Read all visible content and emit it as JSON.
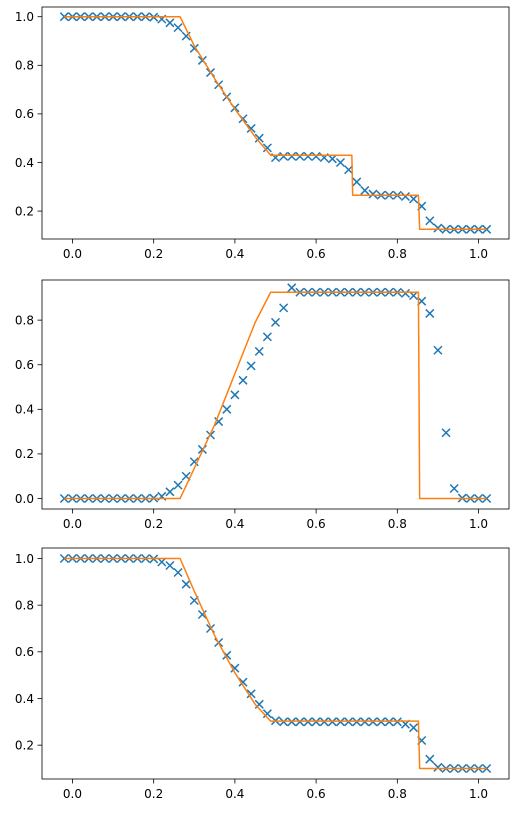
{
  "chart_data": [
    {
      "type": "scatter+line",
      "title": "",
      "xlabel": "",
      "ylabel": "",
      "xlim": [
        -0.075,
        1.075
      ],
      "ylim": [
        0.085,
        1.04
      ],
      "xticks": [
        0.0,
        0.2,
        0.4,
        0.6,
        0.8,
        1.0
      ],
      "xtick_labels": [
        "0.0",
        "0.2",
        "0.4",
        "0.6",
        "0.8",
        "1.0"
      ],
      "yticks": [
        0.2,
        0.4,
        0.6,
        0.8,
        1.0
      ],
      "ytick_labels": [
        "0.2",
        "0.4",
        "0.6",
        "0.8",
        "1.0"
      ],
      "grid": false,
      "series": [
        {
          "kind": "markers",
          "marker": "x",
          "color": "#1f77b4",
          "x": [
            -0.02,
            0.0,
            0.02,
            0.04,
            0.06,
            0.08,
            0.1,
            0.12,
            0.14,
            0.16,
            0.18,
            0.2,
            0.22,
            0.24,
            0.26,
            0.28,
            0.3,
            0.32,
            0.34,
            0.36,
            0.38,
            0.4,
            0.42,
            0.44,
            0.46,
            0.48,
            0.5,
            0.52,
            0.54,
            0.56,
            0.58,
            0.6,
            0.62,
            0.64,
            0.66,
            0.68,
            0.7,
            0.72,
            0.74,
            0.76,
            0.78,
            0.8,
            0.82,
            0.84,
            0.86,
            0.88,
            0.9,
            0.92,
            0.94,
            0.96,
            0.98,
            1.0,
            1.02
          ],
          "y": [
            1.0,
            1.0,
            1.0,
            1.0,
            1.0,
            1.0,
            1.0,
            1.0,
            1.0,
            1.0,
            1.0,
            0.998,
            0.99,
            0.975,
            0.955,
            0.92,
            0.87,
            0.82,
            0.77,
            0.72,
            0.67,
            0.625,
            0.58,
            0.54,
            0.5,
            0.46,
            0.42,
            0.425,
            0.425,
            0.425,
            0.425,
            0.425,
            0.42,
            0.415,
            0.4,
            0.37,
            0.32,
            0.285,
            0.27,
            0.265,
            0.265,
            0.265,
            0.26,
            0.25,
            0.22,
            0.16,
            0.13,
            0.125,
            0.125,
            0.125,
            0.125,
            0.125,
            0.125
          ]
        },
        {
          "kind": "line",
          "color": "#ff7f0e",
          "x": [
            -0.02,
            0.265,
            0.3,
            0.35,
            0.4,
            0.45,
            0.488,
            0.688,
            0.69,
            0.852,
            0.855,
            1.02
          ],
          "y": [
            1.0,
            1.0,
            0.88,
            0.745,
            0.62,
            0.505,
            0.43,
            0.43,
            0.265,
            0.265,
            0.125,
            0.125
          ]
        }
      ]
    },
    {
      "type": "scatter+line",
      "title": "",
      "xlabel": "",
      "ylabel": "",
      "xlim": [
        -0.075,
        1.075
      ],
      "ylim": [
        -0.047,
        0.98
      ],
      "xticks": [
        0.0,
        0.2,
        0.4,
        0.6,
        0.8,
        1.0
      ],
      "xtick_labels": [
        "0.0",
        "0.2",
        "0.4",
        "0.6",
        "0.8",
        "1.0"
      ],
      "yticks": [
        0.0,
        0.2,
        0.4,
        0.6,
        0.8
      ],
      "ytick_labels": [
        "0.0",
        "0.2",
        "0.4",
        "0.6",
        "0.8"
      ],
      "grid": false,
      "series": [
        {
          "kind": "markers",
          "marker": "x",
          "color": "#1f77b4",
          "x": [
            -0.02,
            0.0,
            0.02,
            0.04,
            0.06,
            0.08,
            0.1,
            0.12,
            0.14,
            0.16,
            0.18,
            0.2,
            0.22,
            0.24,
            0.26,
            0.28,
            0.3,
            0.32,
            0.34,
            0.36,
            0.38,
            0.4,
            0.42,
            0.44,
            0.46,
            0.48,
            0.5,
            0.52,
            0.54,
            0.56,
            0.58,
            0.6,
            0.62,
            0.64,
            0.66,
            0.68,
            0.7,
            0.72,
            0.74,
            0.76,
            0.78,
            0.8,
            0.82,
            0.84,
            0.86,
            0.88,
            0.9,
            0.92,
            0.94,
            0.96,
            0.98,
            1.0,
            1.02
          ],
          "y": [
            0.0,
            0.0,
            0.0,
            0.0,
            0.0,
            0.0,
            0.0,
            0.0,
            0.0,
            0.0,
            0.0,
            0.002,
            0.01,
            0.03,
            0.06,
            0.1,
            0.165,
            0.22,
            0.285,
            0.345,
            0.4,
            0.465,
            0.53,
            0.595,
            0.66,
            0.725,
            0.79,
            0.855,
            0.945,
            0.925,
            0.925,
            0.925,
            0.925,
            0.925,
            0.925,
            0.925,
            0.925,
            0.925,
            0.925,
            0.925,
            0.925,
            0.925,
            0.92,
            0.91,
            0.885,
            0.83,
            0.665,
            0.295,
            0.045,
            0.002,
            0.0,
            0.0,
            0.0
          ]
        },
        {
          "kind": "line",
          "color": "#ff7f0e",
          "x": [
            -0.02,
            0.265,
            0.35,
            0.4,
            0.45,
            0.488,
            0.852,
            0.855,
            1.02
          ],
          "y": [
            0.0,
            0.0,
            0.33,
            0.56,
            0.79,
            0.925,
            0.925,
            0.0,
            0.0
          ]
        }
      ]
    },
    {
      "type": "scatter+line",
      "title": "",
      "xlabel": "",
      "ylabel": "",
      "xlim": [
        -0.075,
        1.075
      ],
      "ylim": [
        0.055,
        1.045
      ],
      "xticks": [
        0.0,
        0.2,
        0.4,
        0.6,
        0.8,
        1.0
      ],
      "xtick_labels": [
        "0.0",
        "0.2",
        "0.4",
        "0.6",
        "0.8",
        "1.0"
      ],
      "yticks": [
        0.2,
        0.4,
        0.6,
        0.8,
        1.0
      ],
      "ytick_labels": [
        "0.2",
        "0.4",
        "0.6",
        "0.8",
        "1.0"
      ],
      "grid": false,
      "series": [
        {
          "kind": "markers",
          "marker": "x",
          "color": "#1f77b4",
          "x": [
            -0.02,
            0.0,
            0.02,
            0.04,
            0.06,
            0.08,
            0.1,
            0.12,
            0.14,
            0.16,
            0.18,
            0.2,
            0.22,
            0.24,
            0.26,
            0.28,
            0.3,
            0.32,
            0.34,
            0.36,
            0.38,
            0.4,
            0.42,
            0.44,
            0.46,
            0.48,
            0.5,
            0.52,
            0.54,
            0.56,
            0.58,
            0.6,
            0.62,
            0.64,
            0.66,
            0.68,
            0.7,
            0.72,
            0.74,
            0.76,
            0.78,
            0.8,
            0.82,
            0.84,
            0.86,
            0.88,
            0.9,
            0.92,
            0.94,
            0.96,
            0.98,
            1.0,
            1.02
          ],
          "y": [
            1.0,
            1.0,
            1.0,
            1.0,
            1.0,
            1.0,
            1.0,
            1.0,
            1.0,
            1.0,
            1.0,
            0.998,
            0.985,
            0.97,
            0.94,
            0.89,
            0.82,
            0.76,
            0.7,
            0.64,
            0.585,
            0.53,
            0.47,
            0.42,
            0.375,
            0.335,
            0.305,
            0.3,
            0.3,
            0.3,
            0.3,
            0.3,
            0.3,
            0.3,
            0.3,
            0.3,
            0.3,
            0.3,
            0.3,
            0.3,
            0.3,
            0.3,
            0.29,
            0.275,
            0.22,
            0.14,
            0.105,
            0.1,
            0.1,
            0.1,
            0.1,
            0.1,
            0.1
          ]
        },
        {
          "kind": "line",
          "color": "#ff7f0e",
          "x": [
            -0.02,
            0.265,
            0.3,
            0.35,
            0.4,
            0.45,
            0.488,
            0.852,
            0.855,
            1.02
          ],
          "y": [
            1.0,
            1.0,
            0.86,
            0.67,
            0.51,
            0.375,
            0.303,
            0.303,
            0.1,
            0.1
          ]
        }
      ]
    }
  ]
}
